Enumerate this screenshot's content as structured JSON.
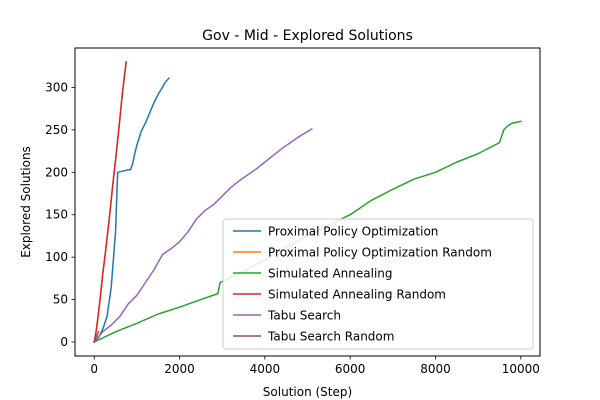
{
  "chart_data": {
    "type": "line",
    "title": "Gov - Mid - Explored Solutions",
    "xlabel": "Solution (Step)",
    "ylabel": "Explored Solutions",
    "xlim": [
      -450,
      10450
    ],
    "ylim": [
      -16.5,
      346.5
    ],
    "xticks": [
      0,
      2000,
      4000,
      6000,
      8000,
      10000
    ],
    "xtick_labels": [
      "0",
      "2000",
      "4000",
      "6000",
      "8000",
      "10000"
    ],
    "yticks": [
      0,
      50,
      100,
      150,
      200,
      250,
      300
    ],
    "ytick_labels": [
      "0",
      "50",
      "100",
      "150",
      "200",
      "250",
      "300"
    ],
    "grid": false,
    "legend_position": "lower-right",
    "series": [
      {
        "name": "Proximal Policy Optimization",
        "color": "#1f77b4",
        "x": [
          0,
          100,
          200,
          300,
          400,
          500,
          550,
          800,
          850,
          900,
          950,
          1000,
          1050,
          1100,
          1200,
          1300,
          1400,
          1500,
          1600,
          1650,
          1700,
          1750
        ],
        "y": [
          0,
          5,
          15,
          30,
          65,
          130,
          200,
          203,
          203,
          210,
          222,
          232,
          240,
          248,
          258,
          270,
          282,
          292,
          300,
          305,
          308,
          311
        ]
      },
      {
        "name": "Proximal Policy Optimization Random",
        "color": "#ff7f0e",
        "x": [
          0,
          50,
          100,
          150,
          200,
          250,
          300,
          350,
          400,
          450,
          500,
          550,
          600,
          650,
          700,
          750
        ],
        "y": [
          0,
          14,
          34,
          56,
          80,
          100,
          122,
          144,
          168,
          192,
          214,
          238,
          262,
          288,
          310,
          330
        ]
      },
      {
        "name": "Simulated Annealing",
        "color": "#2ca02c",
        "x": [
          0,
          500,
          1000,
          1500,
          2000,
          2500,
          2900,
          2950,
          3500,
          4000,
          4500,
          5000,
          5500,
          6000,
          6500,
          7000,
          7500,
          8000,
          8500,
          9000,
          9500,
          9600,
          9700,
          9800,
          10000
        ],
        "y": [
          0,
          12,
          22,
          33,
          41,
          50,
          57,
          70,
          83,
          97,
          112,
          125,
          138,
          150,
          167,
          180,
          192,
          200,
          212,
          222,
          235,
          250,
          255,
          258,
          260
        ]
      },
      {
        "name": "Simulated Annealing Random",
        "color": "#d62728",
        "x": [
          0,
          50,
          100,
          150,
          200,
          250,
          300,
          350,
          400,
          450,
          500,
          550,
          600,
          650,
          700,
          750
        ],
        "y": [
          0,
          14,
          34,
          56,
          80,
          100,
          122,
          144,
          168,
          192,
          214,
          238,
          262,
          288,
          310,
          330
        ]
      },
      {
        "name": "Tabu Search",
        "color": "#9467bd",
        "x": [
          0,
          200,
          400,
          600,
          800,
          1000,
          1200,
          1400,
          1600,
          1800,
          2000,
          2200,
          2400,
          2600,
          2800,
          3000,
          3200,
          3400,
          3600,
          3800,
          4000,
          4200,
          4400,
          4600,
          4800,
          5000,
          5100
        ],
        "y": [
          0,
          12,
          20,
          30,
          45,
          55,
          70,
          85,
          103,
          110,
          118,
          130,
          145,
          155,
          162,
          172,
          182,
          190,
          197,
          204,
          212,
          220,
          228,
          235,
          242,
          248,
          251
        ]
      },
      {
        "name": "Tabu Search Random",
        "color": "#8c564b",
        "x": [
          0,
          50,
          100
        ],
        "y": [
          0,
          6,
          12
        ]
      }
    ]
  }
}
